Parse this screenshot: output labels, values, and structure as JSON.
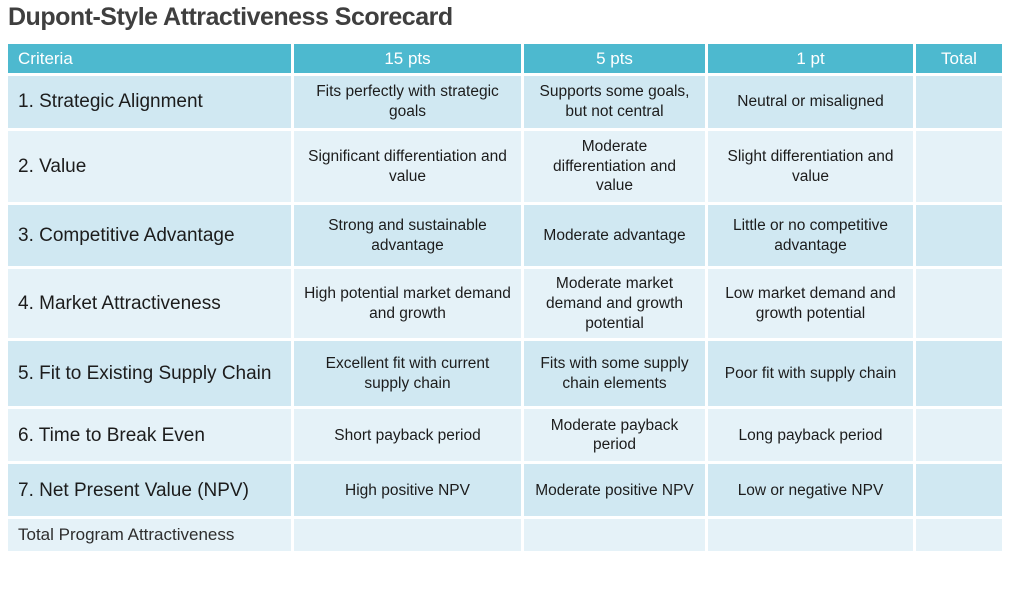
{
  "page": {
    "title": "Dupont-Style Attractiveness Scorecard"
  },
  "colors": {
    "header_bg": "#4db9cf",
    "row_odd_bg": "#d0e8f2",
    "row_even_bg": "#e5f2f8",
    "header_text": "#ffffff",
    "title_text": "#3f3f3f",
    "body_text": "#1c1c1c",
    "page_bg": "#ffffff"
  },
  "table": {
    "columns": [
      "Criteria",
      "15 pts",
      "5 pts",
      "1 pt",
      "Total"
    ],
    "rows": [
      {
        "criteria": "1. Strategic Alignment",
        "pts15": "Fits perfectly with strategic goals",
        "pts5": "Supports some goals, but not central",
        "pt1": "Neutral or misaligned",
        "total": ""
      },
      {
        "criteria": "2. Value",
        "pts15": "Significant differentiation and value",
        "pts5": "Moderate differentiation and value",
        "pt1": "Slight differentiation and value",
        "total": ""
      },
      {
        "criteria": "3. Competitive Advantage",
        "pts15": "Strong and sustainable advantage",
        "pts5": "Moderate advantage",
        "pt1": "Little or no competitive advantage",
        "total": ""
      },
      {
        "criteria": "4. Market Attractiveness",
        "pts15": "High potential market demand and growth",
        "pts5": "Moderate market demand and growth potential",
        "pt1": "Low market demand and growth potential",
        "total": ""
      },
      {
        "criteria": "5. Fit to Existing Supply Chain",
        "pts15": "Excellent fit with current supply chain",
        "pts5": "Fits with some supply chain elements",
        "pt1": "Poor fit with supply chain",
        "total": ""
      },
      {
        "criteria": "6. Time to Break Even",
        "pts15": "Short payback period",
        "pts5": "Moderate payback period",
        "pt1": "Long payback period",
        "total": ""
      },
      {
        "criteria": "7. Net Present Value (NPV)",
        "pts15": "High positive NPV",
        "pts5": "Moderate positive NPV",
        "pt1": "Low or negative NPV",
        "total": ""
      },
      {
        "criteria": "Total Program Attractiveness",
        "pts15": "",
        "pts5": "",
        "pt1": "",
        "total": ""
      }
    ]
  }
}
